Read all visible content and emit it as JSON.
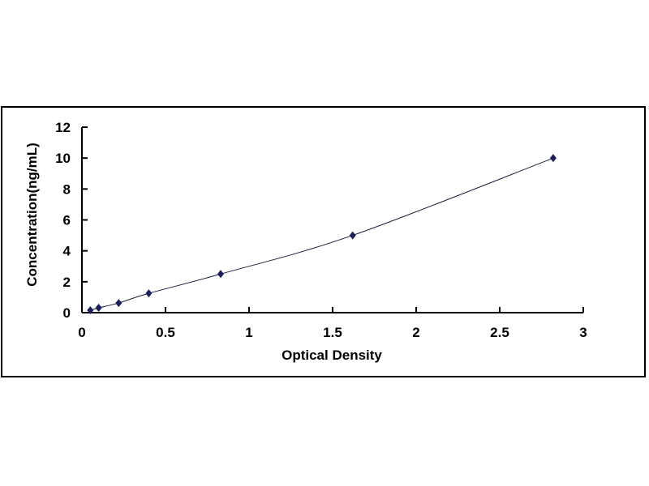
{
  "chart_data": {
    "type": "scatter",
    "xlabel": "Optical Density",
    "ylabel": "Concentration(ng/mL)",
    "xlim": [
      0,
      3
    ],
    "ylim": [
      0,
      12
    ],
    "xticks": [
      "0",
      "0.5",
      "1",
      "1.5",
      "2",
      "2.5",
      "3"
    ],
    "yticks": [
      "0",
      "2",
      "4",
      "6",
      "8",
      "10",
      "12"
    ],
    "grid": false,
    "trendline": "smooth curve through points",
    "marker": "diamond",
    "color": "#1a1f5c",
    "points": [
      {
        "x": 0.05,
        "y": 0.156
      },
      {
        "x": 0.1,
        "y": 0.312
      },
      {
        "x": 0.22,
        "y": 0.625
      },
      {
        "x": 0.4,
        "y": 1.25
      },
      {
        "x": 0.83,
        "y": 2.5
      },
      {
        "x": 1.62,
        "y": 5
      },
      {
        "x": 2.82,
        "y": 10
      }
    ]
  }
}
